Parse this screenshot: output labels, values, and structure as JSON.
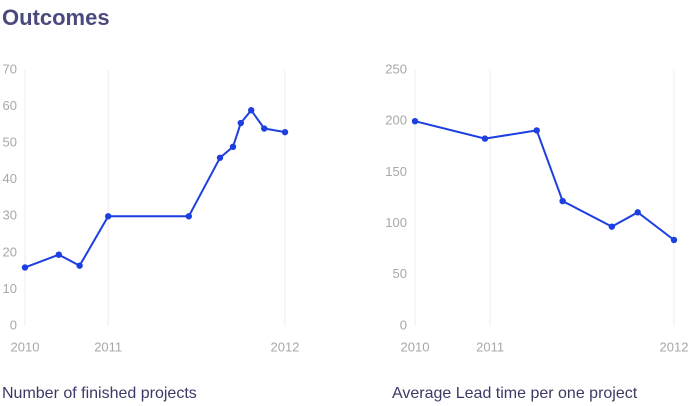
{
  "title": "Outcomes",
  "chart_data": [
    {
      "type": "line",
      "title": "Number of finished projects",
      "x": [
        0,
        13,
        21,
        32,
        63,
        75,
        80,
        83,
        87,
        92,
        100
      ],
      "values": [
        16,
        19.5,
        16.5,
        30,
        30,
        46,
        49,
        55.5,
        59,
        54,
        53
      ],
      "color": "#1d3fe0",
      "xlim": [
        0,
        100
      ],
      "xticks": [
        {
          "value": 0,
          "label": "2010"
        },
        {
          "value": 32,
          "label": "2011"
        },
        {
          "value": 100,
          "label": "2012"
        }
      ],
      "ylim": [
        0,
        70
      ],
      "yticks": [
        0,
        10,
        20,
        30,
        40,
        50,
        60,
        70
      ]
    },
    {
      "type": "line",
      "title": "Average Lead time per one project",
      "x": [
        0,
        27,
        47,
        57,
        76,
        86,
        100
      ],
      "values": [
        200,
        183,
        191,
        122,
        97,
        111,
        84
      ],
      "color": "#1d3fe0",
      "xlim": [
        0,
        100
      ],
      "xticks": [
        {
          "value": 0,
          "label": "2010"
        },
        {
          "value": 29,
          "label": "2011"
        },
        {
          "value": 100,
          "label": "2012"
        }
      ],
      "ylim": [
        0,
        250
      ],
      "yticks": [
        0,
        50,
        100,
        150,
        200,
        250
      ]
    }
  ]
}
